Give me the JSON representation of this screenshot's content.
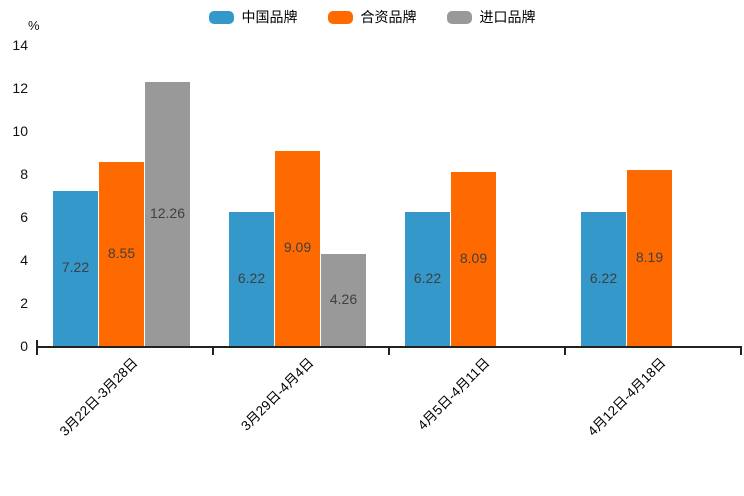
{
  "chart_data": {
    "type": "bar",
    "title": "",
    "xlabel": "",
    "ylabel": "%",
    "categories": [
      "3月22日-3月28日",
      "3月29日-4月4日",
      "4月5日-4月11日",
      "4月12日-4月18日"
    ],
    "series": [
      {
        "name": "中国品牌",
        "color": "#3498cb",
        "values": [
          7.22,
          6.22,
          6.22,
          6.22
        ]
      },
      {
        "name": "合资品牌",
        "color": "#ff6a00",
        "values": [
          8.55,
          9.09,
          8.09,
          8.19
        ]
      },
      {
        "name": "进口品牌",
        "color": "#999999",
        "values": [
          12.26,
          4.26,
          null,
          null
        ]
      }
    ],
    "ylim": [
      0,
      14
    ],
    "yticks": [
      0,
      2,
      4,
      6,
      8,
      10,
      12,
      14
    ],
    "legend_position": "top",
    "grid": false,
    "value_labels": "inside-center",
    "axis_color": "#222222",
    "value_label_color": "#404040"
  }
}
